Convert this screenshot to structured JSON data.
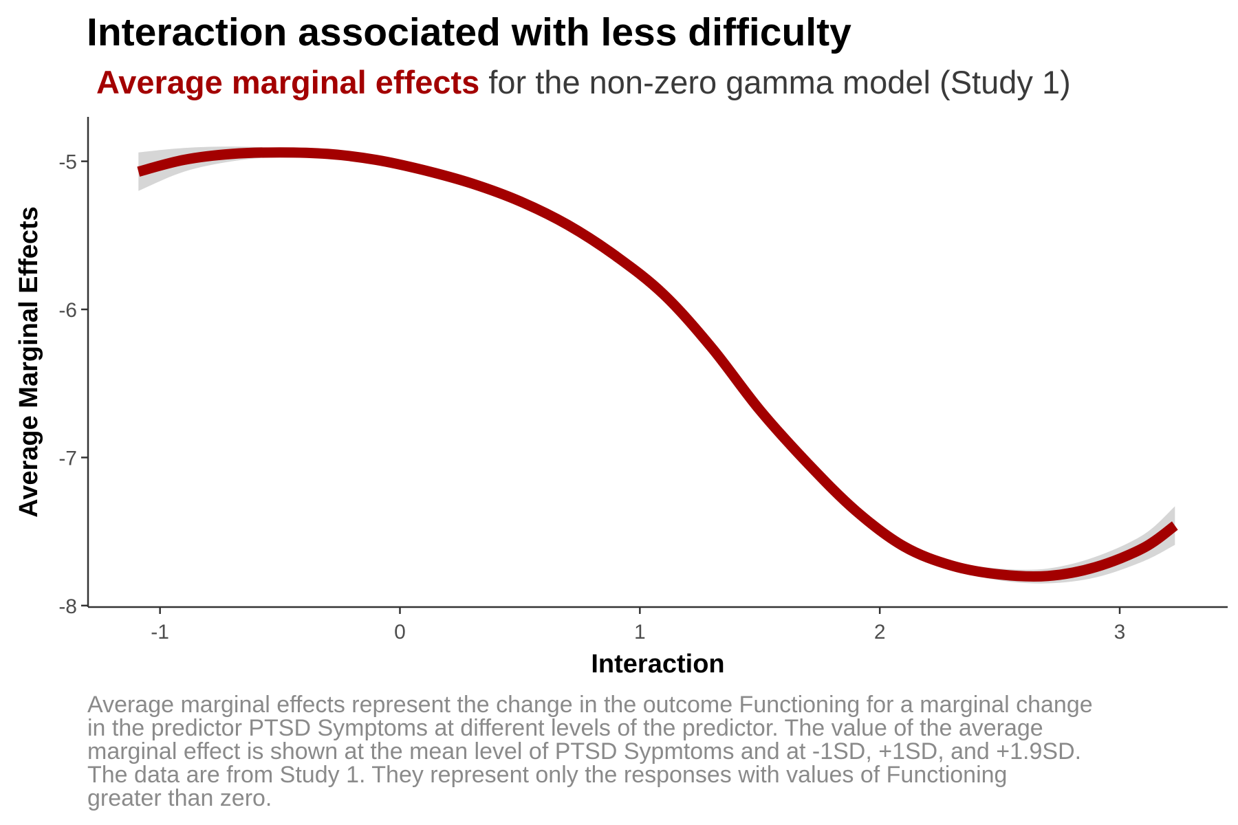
{
  "title": "Interaction associated with less difficulty",
  "subtitle": {
    "highlight": "Average marginal effects",
    "rest": "for the non-zero gamma model (Study 1)"
  },
  "caption_lines": [
    "Average marginal effects represent the change in the outcome Functioning for a marginal change",
    "in the predictor PTSD Symptoms at different levels of the predictor. The value of the average",
    "marginal effect is shown at the mean level of PTSD Sypmtoms and at -1SD, +1SD, and +1.9SD.",
    "The data are from Study 1. They represent only the responses with values of Functioning",
    "greater than zero."
  ],
  "colors": {
    "line": "#a30000",
    "band": "#d6d6d6",
    "axis": "#333333",
    "caption": "#8a8a8a"
  },
  "chart_data": {
    "type": "line",
    "xlabel": "Interaction",
    "ylabel": "Average Marginal Effects",
    "xlim": [
      -1.3,
      3.45
    ],
    "ylim": [
      -8.01,
      -4.7
    ],
    "xticks": [
      -1,
      0,
      1,
      2,
      3
    ],
    "xtick_labels": [
      "-1",
      "0",
      "1",
      "2",
      "3"
    ],
    "yticks": [
      -8,
      -7,
      -6,
      -5
    ],
    "ytick_labels": [
      "-8",
      "-7",
      "-6",
      "-5"
    ],
    "grid": false,
    "legend": "none",
    "series": [
      {
        "x": [
          -1.09,
          -0.9,
          -0.7,
          -0.5,
          -0.3,
          -0.1,
          0.1,
          0.3,
          0.5,
          0.7,
          0.9,
          1.1,
          1.3,
          1.5,
          1.7,
          1.9,
          2.1,
          2.3,
          2.5,
          2.7,
          2.9,
          3.1,
          3.23
        ],
        "y": [
          -5.07,
          -4.99,
          -4.95,
          -4.94,
          -4.95,
          -4.99,
          -5.06,
          -5.15,
          -5.27,
          -5.43,
          -5.64,
          -5.9,
          -6.26,
          -6.68,
          -7.04,
          -7.36,
          -7.6,
          -7.73,
          -7.79,
          -7.8,
          -7.74,
          -7.61,
          -7.46
        ],
        "ci_low": [
          -5.2,
          -5.07,
          -5.0,
          -4.97,
          -4.97,
          -5.01,
          -5.08,
          -5.17,
          -5.29,
          -5.45,
          -5.66,
          -5.93,
          -6.29,
          -6.71,
          -7.07,
          -7.39,
          -7.63,
          -7.76,
          -7.83,
          -7.85,
          -7.81,
          -7.7,
          -7.59
        ],
        "ci_high": [
          -4.94,
          -4.91,
          -4.9,
          -4.91,
          -4.93,
          -4.97,
          -5.04,
          -5.13,
          -5.25,
          -5.41,
          -5.62,
          -5.87,
          -6.23,
          -6.65,
          -7.01,
          -7.33,
          -7.57,
          -7.7,
          -7.75,
          -7.75,
          -7.67,
          -7.52,
          -7.33
        ]
      }
    ]
  }
}
